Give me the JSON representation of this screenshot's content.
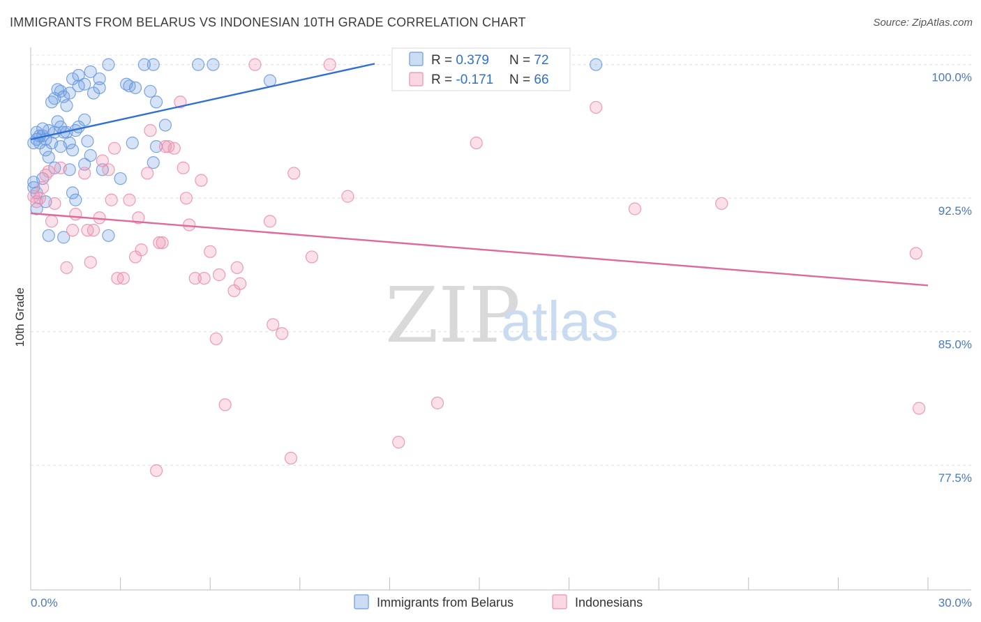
{
  "title": "IMMIGRANTS FROM BELARUS VS INDONESIAN 10TH GRADE CORRELATION CHART",
  "source": "Source: ZipAtlas.com",
  "watermark": {
    "zip": "ZIP",
    "atlas": "atlas"
  },
  "chart_data": {
    "type": "scatter",
    "ylabel": "10th Grade",
    "xlim": [
      0,
      30
    ],
    "ylim": [
      70.5,
      101.2
    ],
    "x_tick_labels": [
      {
        "value": 0,
        "label": "0.0%"
      },
      {
        "value": 30,
        "label": "30.0%"
      }
    ],
    "y_ticks": [
      {
        "value": 100,
        "label": "100.0%"
      },
      {
        "value": 92.5,
        "label": "92.5%"
      },
      {
        "value": 85,
        "label": "85.0%"
      },
      {
        "value": 77.5,
        "label": "77.5%"
      }
    ],
    "legend": [
      {
        "name": "Immigrants from Belarus",
        "r_label": "R = ",
        "r": "0.379",
        "n_label": "N = ",
        "n": "72",
        "color": "#6b9be0"
      },
      {
        "name": "Indonesians",
        "r_label": "R = ",
        "r": "-0.171",
        "n_label": "N = ",
        "n": "66",
        "color": "#ee8fb0"
      }
    ],
    "series": [
      {
        "name": "Immigrants from Belarus",
        "color": "#6b9be0",
        "trend": {
          "x": [
            0,
            11.5
          ],
          "y": [
            95.8,
            100.05
          ],
          "color": "#2d6fd6"
        },
        "points": [
          [
            0.1,
            95.6
          ],
          [
            0.2,
            95.8
          ],
          [
            0.3,
            96.0
          ],
          [
            0.2,
            96.2
          ],
          [
            0.3,
            95.6
          ],
          [
            0.4,
            96.0
          ],
          [
            0.5,
            95.8
          ],
          [
            0.4,
            96.4
          ],
          [
            0.6,
            96.3
          ],
          [
            0.7,
            95.6
          ],
          [
            0.5,
            95.2
          ],
          [
            0.6,
            94.8
          ],
          [
            0.8,
            96.2
          ],
          [
            0.9,
            96.8
          ],
          [
            1.0,
            96.5
          ],
          [
            1.1,
            96.2
          ],
          [
            1.2,
            96.2
          ],
          [
            1.0,
            95.4
          ],
          [
            1.3,
            95.6
          ],
          [
            1.4,
            95.2
          ],
          [
            1.5,
            96.3
          ],
          [
            1.6,
            96.5
          ],
          [
            1.8,
            96.9
          ],
          [
            1.9,
            95.7
          ],
          [
            2.0,
            94.9
          ],
          [
            0.7,
            97.9
          ],
          [
            0.8,
            98.1
          ],
          [
            1.1,
            98.2
          ],
          [
            1.2,
            97.7
          ],
          [
            0.9,
            98.6
          ],
          [
            1.0,
            98.5
          ],
          [
            1.3,
            98.4
          ],
          [
            1.4,
            99.2
          ],
          [
            1.6,
            98.8
          ],
          [
            1.8,
            98.9
          ],
          [
            2.1,
            98.4
          ],
          [
            2.3,
            98.7
          ],
          [
            1.6,
            99.4
          ],
          [
            2.0,
            99.6
          ],
          [
            2.3,
            99.2
          ],
          [
            2.6,
            100.0
          ],
          [
            3.3,
            98.8
          ],
          [
            3.5,
            98.7
          ],
          [
            3.8,
            100.0
          ],
          [
            4.0,
            98.5
          ],
          [
            4.2,
            97.9
          ],
          [
            4.1,
            100.0
          ],
          [
            5.6,
            100.0
          ],
          [
            6.1,
            100.0
          ],
          [
            8.0,
            99.1
          ],
          [
            18.9,
            100.0
          ],
          [
            3.2,
            98.9
          ],
          [
            4.5,
            96.6
          ],
          [
            0.1,
            93.4
          ],
          [
            0.1,
            93.1
          ],
          [
            0.2,
            92.8
          ],
          [
            0.2,
            91.9
          ],
          [
            0.4,
            93.6
          ],
          [
            0.6,
            90.4
          ],
          [
            0.8,
            94.2
          ],
          [
            1.3,
            94.1
          ],
          [
            1.4,
            92.8
          ],
          [
            1.5,
            92.4
          ],
          [
            1.8,
            94.4
          ],
          [
            2.4,
            94.1
          ],
          [
            3.0,
            93.6
          ],
          [
            3.4,
            95.6
          ],
          [
            4.1,
            94.5
          ],
          [
            4.2,
            95.4
          ],
          [
            2.6,
            90.4
          ],
          [
            1.1,
            90.3
          ],
          [
            0.5,
            92.3
          ]
        ]
      },
      {
        "name": "Indonesians",
        "color": "#ee8fb0",
        "trend": {
          "x": [
            0,
            30
          ],
          "y": [
            91.65,
            87.6
          ],
          "color": "#e0689a"
        },
        "points": [
          [
            0.1,
            92.6
          ],
          [
            0.2,
            92.3
          ],
          [
            0.3,
            92.5
          ],
          [
            0.4,
            93.1
          ],
          [
            0.5,
            93.8
          ],
          [
            0.6,
            94.0
          ],
          [
            0.7,
            91.2
          ],
          [
            0.8,
            92.2
          ],
          [
            1.0,
            94.2
          ],
          [
            1.2,
            88.6
          ],
          [
            1.4,
            90.7
          ],
          [
            1.5,
            91.6
          ],
          [
            1.8,
            93.9
          ],
          [
            1.9,
            90.7
          ],
          [
            2.0,
            88.9
          ],
          [
            2.1,
            90.7
          ],
          [
            2.3,
            91.4
          ],
          [
            2.4,
            94.6
          ],
          [
            2.6,
            94.1
          ],
          [
            2.7,
            92.4
          ],
          [
            2.8,
            95.3
          ],
          [
            2.9,
            88.0
          ],
          [
            3.1,
            88.0
          ],
          [
            3.3,
            92.4
          ],
          [
            3.5,
            89.2
          ],
          [
            3.6,
            91.4
          ],
          [
            3.7,
            89.6
          ],
          [
            3.9,
            93.9
          ],
          [
            4.0,
            96.3
          ],
          [
            4.3,
            90.0
          ],
          [
            4.4,
            90.0
          ],
          [
            4.5,
            95.4
          ],
          [
            4.6,
            95.4
          ],
          [
            4.8,
            95.3
          ],
          [
            5.0,
            97.9
          ],
          [
            5.1,
            94.2
          ],
          [
            5.2,
            92.5
          ],
          [
            5.3,
            91.0
          ],
          [
            5.5,
            88.0
          ],
          [
            5.7,
            93.5
          ],
          [
            5.8,
            88.0
          ],
          [
            6.0,
            89.5
          ],
          [
            6.2,
            84.6
          ],
          [
            6.3,
            88.2
          ],
          [
            6.5,
            80.9
          ],
          [
            6.8,
            87.3
          ],
          [
            6.9,
            88.6
          ],
          [
            7.0,
            87.7
          ],
          [
            7.5,
            100.0
          ],
          [
            8.0,
            91.2
          ],
          [
            8.1,
            85.4
          ],
          [
            8.4,
            84.9
          ],
          [
            8.7,
            77.9
          ],
          [
            8.8,
            93.9
          ],
          [
            9.4,
            89.2
          ],
          [
            10.0,
            100.0
          ],
          [
            10.6,
            92.6
          ],
          [
            12.3,
            78.8
          ],
          [
            13.6,
            81.0
          ],
          [
            14.9,
            95.6
          ],
          [
            18.9,
            97.6
          ],
          [
            20.2,
            91.9
          ],
          [
            23.1,
            92.2
          ],
          [
            29.6,
            89.4
          ],
          [
            29.7,
            80.7
          ],
          [
            4.2,
            77.2
          ]
        ]
      }
    ]
  }
}
